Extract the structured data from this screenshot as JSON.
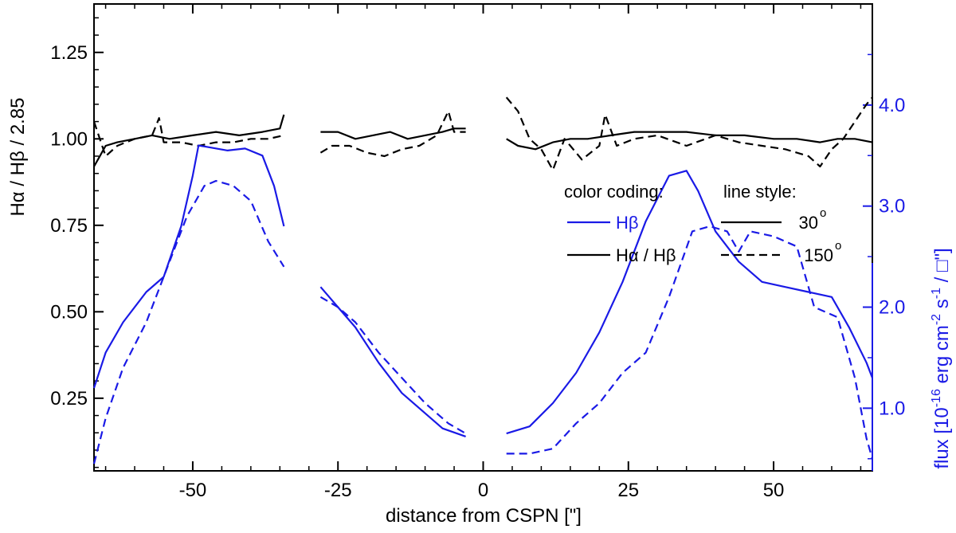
{
  "chart_data": {
    "type": "line",
    "xlabel": "distance from CSPN [\"]",
    "ylabel_left": "Hα / Hβ / 2.85",
    "ylabel_right_prefix": "flux [10",
    "ylabel_right_exp1": "-16",
    "ylabel_right_mid1": " erg cm",
    "ylabel_right_exp2": "-2",
    "ylabel_right_mid2": " s",
    "ylabel_right_exp3": "-1",
    "ylabel_right_suffix": " / □\"]",
    "xlim": [
      -67,
      67
    ],
    "ylim_left": [
      0.04,
      1.39
    ],
    "ylim_right": [
      0.38,
      5.0
    ],
    "x_ticks": [
      -50,
      -25,
      0,
      25,
      50
    ],
    "x_tick_labels": [
      "-50",
      "-25",
      "0",
      "25",
      "50"
    ],
    "y_left_ticks": [
      0.25,
      0.5,
      0.75,
      1.0,
      1.25
    ],
    "y_left_tick_labels": [
      "0.25",
      "0.50",
      "0.75",
      "1.00",
      "1.25"
    ],
    "y_right_ticks": [
      1.0,
      2.0,
      3.0,
      4.0
    ],
    "y_right_tick_labels": [
      "1.0",
      "2.0",
      "3.0",
      "4.0"
    ],
    "colors": {
      "black": "#000000",
      "blue": "#1a1ae6"
    },
    "legend": {
      "color_title": "color coding:",
      "style_title": "line style:",
      "hb_label": "Hβ",
      "ratio_label": "Hα / Hβ",
      "solid_label": "30",
      "dashed_label": "150",
      "degree": "o"
    },
    "series": [
      {
        "name": "Hα/Hβ 30°",
        "axis": "left",
        "color": "black",
        "dash": false,
        "segments": [
          [
            [
              -67,
              0.92
            ],
            [
              -65,
              0.98
            ],
            [
              -63,
              0.99
            ],
            [
              -60,
              1.0
            ],
            [
              -57,
              1.01
            ],
            [
              -54,
              1.0
            ],
            [
              -50,
              1.01
            ],
            [
              -46,
              1.02
            ],
            [
              -42,
              1.01
            ],
            [
              -38,
              1.02
            ],
            [
              -35,
              1.03
            ],
            [
              -34.3,
              1.07
            ]
          ],
          [
            [
              -28,
              1.02
            ],
            [
              -25,
              1.02
            ],
            [
              -22,
              1.0
            ],
            [
              -19,
              1.01
            ],
            [
              -16,
              1.02
            ],
            [
              -13,
              1.0
            ],
            [
              -10,
              1.01
            ],
            [
              -7,
              1.02
            ],
            [
              -5,
              1.03
            ],
            [
              -3,
              1.03
            ]
          ],
          [
            [
              4,
              1.0
            ],
            [
              6,
              0.98
            ],
            [
              9,
              0.97
            ],
            [
              12,
              0.99
            ],
            [
              15,
              1.0
            ],
            [
              18,
              1.0
            ],
            [
              22,
              1.01
            ],
            [
              26,
              1.02
            ],
            [
              30,
              1.02
            ],
            [
              35,
              1.02
            ],
            [
              40,
              1.01
            ],
            [
              45,
              1.01
            ],
            [
              50,
              1.0
            ],
            [
              54,
              1.0
            ],
            [
              58,
              0.99
            ],
            [
              61,
              1.0
            ],
            [
              64,
              1.0
            ],
            [
              67,
              0.99
            ]
          ]
        ]
      },
      {
        "name": "Hα/Hβ 150°",
        "axis": "left",
        "color": "black",
        "dash": true,
        "segments": [
          [
            [
              -67,
              1.05
            ],
            [
              -65,
              0.95
            ],
            [
              -63,
              0.98
            ],
            [
              -60,
              1.0
            ],
            [
              -57,
              1.01
            ],
            [
              -55.8,
              1.06
            ],
            [
              -55,
              0.99
            ],
            [
              -52,
              0.99
            ],
            [
              -49,
              0.98
            ],
            [
              -46,
              0.99
            ],
            [
              -43,
              0.99
            ],
            [
              -40,
              1.0
            ],
            [
              -37,
              1.0
            ],
            [
              -34.3,
              1.01
            ]
          ],
          [
            [
              -28,
              0.96
            ],
            [
              -26,
              0.98
            ],
            [
              -23,
              0.98
            ],
            [
              -20,
              0.96
            ],
            [
              -17,
              0.95
            ],
            [
              -14,
              0.97
            ],
            [
              -11,
              0.98
            ],
            [
              -8,
              1.01
            ],
            [
              -6,
              1.08
            ],
            [
              -5,
              1.02
            ],
            [
              -3,
              1.02
            ]
          ],
          [
            [
              4,
              1.12
            ],
            [
              6,
              1.08
            ],
            [
              8,
              1.0
            ],
            [
              10,
              0.97
            ],
            [
              12,
              0.91
            ],
            [
              14,
              1.0
            ],
            [
              17,
              0.94
            ],
            [
              20,
              0.98
            ],
            [
              21,
              1.07
            ],
            [
              23,
              0.98
            ],
            [
              26,
              1.0
            ],
            [
              30,
              1.01
            ],
            [
              35,
              0.98
            ],
            [
              40,
              1.01
            ],
            [
              44,
              0.99
            ],
            [
              48,
              0.98
            ],
            [
              52,
              0.97
            ],
            [
              56,
              0.95
            ],
            [
              58,
              0.92
            ],
            [
              60,
              0.97
            ],
            [
              62,
              1.0
            ],
            [
              64,
              1.05
            ],
            [
              66,
              1.1
            ],
            [
              67,
              1.12
            ]
          ]
        ]
      },
      {
        "name": "Hβ 30°",
        "axis": "right",
        "color": "blue",
        "dash": false,
        "segments": [
          [
            [
              -67,
              1.2
            ],
            [
              -65,
              1.55
            ],
            [
              -62,
              1.85
            ],
            [
              -58,
              2.15
            ],
            [
              -55,
              2.3
            ],
            [
              -52,
              2.8
            ],
            [
              -50,
              3.3
            ],
            [
              -49,
              3.6
            ],
            [
              -47,
              3.58
            ],
            [
              -44,
              3.55
            ],
            [
              -41,
              3.57
            ],
            [
              -38,
              3.5
            ],
            [
              -36,
              3.2
            ],
            [
              -34.3,
              2.8
            ]
          ],
          [
            [
              -28,
              2.2
            ],
            [
              -25,
              2.0
            ],
            [
              -22,
              1.8
            ],
            [
              -18,
              1.45
            ],
            [
              -14,
              1.15
            ],
            [
              -10,
              0.95
            ],
            [
              -7,
              0.8
            ],
            [
              -3,
              0.72
            ]
          ],
          [
            [
              4,
              0.75
            ],
            [
              8,
              0.82
            ],
            [
              12,
              1.05
            ],
            [
              16,
              1.35
            ],
            [
              20,
              1.75
            ],
            [
              24,
              2.25
            ],
            [
              28,
              2.85
            ],
            [
              32,
              3.3
            ],
            [
              35,
              3.35
            ],
            [
              37,
              3.15
            ],
            [
              40,
              2.75
            ],
            [
              44,
              2.45
            ],
            [
              48,
              2.25
            ],
            [
              52,
              2.2
            ],
            [
              56,
              2.15
            ],
            [
              60,
              2.1
            ],
            [
              63,
              1.8
            ],
            [
              66,
              1.45
            ],
            [
              67,
              1.3
            ]
          ]
        ]
      },
      {
        "name": "Hβ 150°",
        "axis": "right",
        "color": "blue",
        "dash": true,
        "segments": [
          [
            [
              -67,
              0.45
            ],
            [
              -65,
              0.9
            ],
            [
              -62,
              1.4
            ],
            [
              -58,
              1.85
            ],
            [
              -54,
              2.45
            ],
            [
              -51,
              2.9
            ],
            [
              -48,
              3.2
            ],
            [
              -46,
              3.25
            ],
            [
              -43,
              3.2
            ],
            [
              -40,
              3.05
            ],
            [
              -37,
              2.65
            ],
            [
              -34.3,
              2.4
            ]
          ],
          [
            [
              -28,
              2.1
            ],
            [
              -25,
              2.0
            ],
            [
              -22,
              1.85
            ],
            [
              -18,
              1.55
            ],
            [
              -14,
              1.3
            ],
            [
              -10,
              1.05
            ],
            [
              -6,
              0.85
            ],
            [
              -3,
              0.75
            ]
          ],
          [
            [
              4,
              0.55
            ],
            [
              8,
              0.55
            ],
            [
              12,
              0.6
            ],
            [
              16,
              0.85
            ],
            [
              20,
              1.05
            ],
            [
              24,
              1.35
            ],
            [
              28,
              1.55
            ],
            [
              32,
              2.1
            ],
            [
              36,
              2.75
            ],
            [
              39,
              2.8
            ],
            [
              42,
              2.75
            ],
            [
              44,
              2.55
            ],
            [
              46,
              2.75
            ],
            [
              50,
              2.7
            ],
            [
              54,
              2.6
            ],
            [
              57,
              2.0
            ],
            [
              61,
              1.9
            ],
            [
              64,
              1.3
            ],
            [
              66,
              0.7
            ],
            [
              67,
              0.5
            ]
          ]
        ]
      }
    ]
  }
}
